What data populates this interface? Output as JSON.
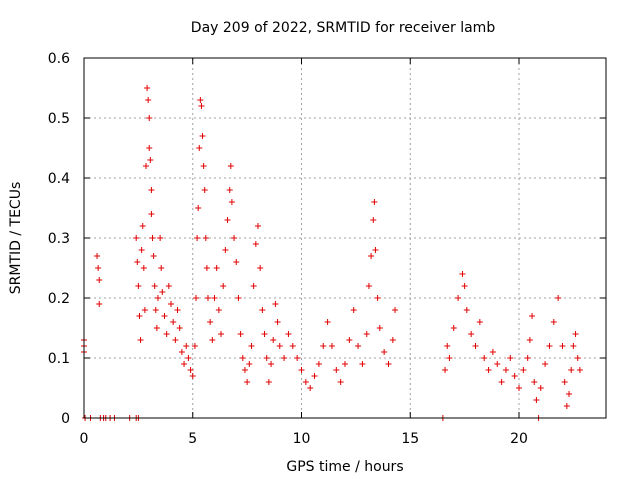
{
  "chart_data": {
    "type": "scatter",
    "title": "Day 209 of 2022, SRMTID for receiver lamb",
    "xlabel": "GPS time / hours",
    "ylabel": "SRMTID / TECUs",
    "xlim": [
      0,
      24
    ],
    "ylim": [
      0,
      0.6
    ],
    "xticks": [
      0,
      5,
      10,
      15,
      20
    ],
    "xtick_labels": [
      "0",
      "5",
      "10",
      "15",
      "20"
    ],
    "yticks": [
      0,
      0.1,
      0.2,
      0.3,
      0.4,
      0.5,
      0.6
    ],
    "ytick_labels": [
      "0",
      "0.1",
      "0.2",
      "0.3",
      "0.4",
      "0.5",
      "0.6"
    ],
    "grid": true,
    "marker": "+",
    "color": "#e00000",
    "series": [
      {
        "name": "SRMTID",
        "points": [
          [
            0.0,
            0.13
          ],
          [
            0.0,
            0.12
          ],
          [
            0.0,
            0.11
          ],
          [
            0.05,
            0.0
          ],
          [
            0.3,
            0.0
          ],
          [
            0.6,
            0.27
          ],
          [
            0.65,
            0.25
          ],
          [
            0.7,
            0.23
          ],
          [
            0.7,
            0.19
          ],
          [
            0.75,
            0.0
          ],
          [
            0.9,
            0.0
          ],
          [
            1.0,
            0.0
          ],
          [
            1.2,
            0.0
          ],
          [
            1.4,
            0.0
          ],
          [
            2.1,
            0.0
          ],
          [
            2.4,
            0.0
          ],
          [
            2.5,
            0.0
          ],
          [
            2.4,
            0.3
          ],
          [
            2.45,
            0.26
          ],
          [
            2.5,
            0.22
          ],
          [
            2.55,
            0.17
          ],
          [
            2.6,
            0.13
          ],
          [
            2.65,
            0.28
          ],
          [
            2.7,
            0.32
          ],
          [
            2.75,
            0.25
          ],
          [
            2.8,
            0.18
          ],
          [
            2.85,
            0.42
          ],
          [
            2.9,
            0.55
          ],
          [
            2.95,
            0.53
          ],
          [
            3.0,
            0.5
          ],
          [
            3.0,
            0.45
          ],
          [
            3.05,
            0.43
          ],
          [
            3.1,
            0.38
          ],
          [
            3.1,
            0.34
          ],
          [
            3.15,
            0.3
          ],
          [
            3.2,
            0.27
          ],
          [
            3.25,
            0.22
          ],
          [
            3.3,
            0.18
          ],
          [
            3.35,
            0.15
          ],
          [
            3.4,
            0.2
          ],
          [
            3.5,
            0.3
          ],
          [
            3.55,
            0.25
          ],
          [
            3.6,
            0.21
          ],
          [
            3.7,
            0.17
          ],
          [
            3.8,
            0.14
          ],
          [
            3.9,
            0.22
          ],
          [
            4.0,
            0.19
          ],
          [
            4.1,
            0.16
          ],
          [
            4.2,
            0.13
          ],
          [
            4.3,
            0.18
          ],
          [
            4.4,
            0.15
          ],
          [
            4.5,
            0.11
          ],
          [
            4.6,
            0.09
          ],
          [
            4.7,
            0.12
          ],
          [
            4.8,
            0.1
          ],
          [
            4.9,
            0.08
          ],
          [
            5.0,
            0.07
          ],
          [
            5.1,
            0.12
          ],
          [
            5.15,
            0.2
          ],
          [
            5.2,
            0.3
          ],
          [
            5.25,
            0.35
          ],
          [
            5.3,
            0.45
          ],
          [
            5.35,
            0.53
          ],
          [
            5.4,
            0.52
          ],
          [
            5.45,
            0.47
          ],
          [
            5.5,
            0.42
          ],
          [
            5.55,
            0.38
          ],
          [
            5.6,
            0.3
          ],
          [
            5.65,
            0.25
          ],
          [
            5.7,
            0.2
          ],
          [
            5.8,
            0.16
          ],
          [
            5.9,
            0.13
          ],
          [
            6.0,
            0.2
          ],
          [
            6.1,
            0.25
          ],
          [
            6.2,
            0.18
          ],
          [
            6.3,
            0.14
          ],
          [
            6.4,
            0.22
          ],
          [
            6.5,
            0.28
          ],
          [
            6.6,
            0.33
          ],
          [
            6.7,
            0.38
          ],
          [
            6.75,
            0.42
          ],
          [
            6.8,
            0.36
          ],
          [
            6.9,
            0.3
          ],
          [
            7.0,
            0.26
          ],
          [
            7.1,
            0.2
          ],
          [
            7.2,
            0.14
          ],
          [
            7.3,
            0.1
          ],
          [
            7.4,
            0.08
          ],
          [
            7.5,
            0.06
          ],
          [
            7.6,
            0.09
          ],
          [
            7.7,
            0.12
          ],
          [
            7.8,
            0.22
          ],
          [
            7.9,
            0.29
          ],
          [
            8.0,
            0.32
          ],
          [
            8.1,
            0.25
          ],
          [
            8.2,
            0.18
          ],
          [
            8.3,
            0.14
          ],
          [
            8.4,
            0.1
          ],
          [
            8.5,
            0.06
          ],
          [
            8.6,
            0.09
          ],
          [
            8.7,
            0.13
          ],
          [
            8.8,
            0.19
          ],
          [
            8.9,
            0.16
          ],
          [
            9.0,
            0.12
          ],
          [
            9.2,
            0.1
          ],
          [
            9.4,
            0.14
          ],
          [
            9.6,
            0.12
          ],
          [
            9.8,
            0.1
          ],
          [
            10.0,
            0.08
          ],
          [
            10.2,
            0.06
          ],
          [
            10.4,
            0.05
          ],
          [
            10.6,
            0.07
          ],
          [
            10.8,
            0.09
          ],
          [
            11.0,
            0.12
          ],
          [
            11.2,
            0.16
          ],
          [
            11.4,
            0.12
          ],
          [
            11.6,
            0.08
          ],
          [
            11.8,
            0.06
          ],
          [
            12.0,
            0.09
          ],
          [
            12.2,
            0.13
          ],
          [
            12.4,
            0.18
          ],
          [
            12.6,
            0.12
          ],
          [
            12.8,
            0.09
          ],
          [
            13.0,
            0.14
          ],
          [
            13.1,
            0.22
          ],
          [
            13.2,
            0.27
          ],
          [
            13.3,
            0.33
          ],
          [
            13.35,
            0.36
          ],
          [
            13.4,
            0.28
          ],
          [
            13.5,
            0.2
          ],
          [
            13.6,
            0.15
          ],
          [
            13.8,
            0.11
          ],
          [
            14.0,
            0.09
          ],
          [
            14.2,
            0.13
          ],
          [
            14.3,
            0.18
          ],
          [
            16.5,
            0.0
          ],
          [
            16.6,
            0.08
          ],
          [
            16.7,
            0.12
          ],
          [
            16.8,
            0.1
          ],
          [
            17.0,
            0.15
          ],
          [
            17.2,
            0.2
          ],
          [
            17.4,
            0.24
          ],
          [
            17.5,
            0.22
          ],
          [
            17.6,
            0.18
          ],
          [
            17.8,
            0.14
          ],
          [
            18.0,
            0.12
          ],
          [
            18.2,
            0.16
          ],
          [
            18.4,
            0.1
          ],
          [
            18.6,
            0.08
          ],
          [
            18.8,
            0.11
          ],
          [
            19.0,
            0.09
          ],
          [
            19.2,
            0.06
          ],
          [
            19.4,
            0.08
          ],
          [
            19.6,
            0.1
          ],
          [
            19.8,
            0.07
          ],
          [
            20.0,
            0.05
          ],
          [
            20.2,
            0.08
          ],
          [
            20.4,
            0.1
          ],
          [
            20.5,
            0.13
          ],
          [
            20.6,
            0.17
          ],
          [
            20.7,
            0.06
          ],
          [
            20.8,
            0.03
          ],
          [
            20.9,
            0.0
          ],
          [
            21.0,
            0.05
          ],
          [
            21.2,
            0.09
          ],
          [
            21.4,
            0.12
          ],
          [
            21.6,
            0.16
          ],
          [
            21.8,
            0.2
          ],
          [
            22.0,
            0.12
          ],
          [
            22.1,
            0.06
          ],
          [
            22.2,
            0.02
          ],
          [
            22.3,
            0.04
          ],
          [
            22.4,
            0.08
          ],
          [
            22.5,
            0.12
          ],
          [
            22.6,
            0.14
          ],
          [
            22.7,
            0.1
          ],
          [
            22.8,
            0.08
          ]
        ]
      }
    ]
  }
}
